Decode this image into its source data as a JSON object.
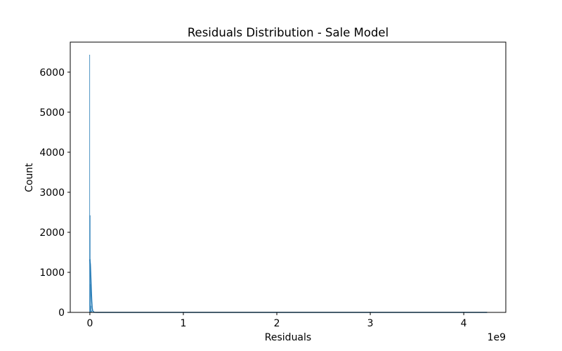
{
  "chart_data": {
    "type": "bar",
    "title": "Residuals Distribution - Sale Model",
    "xlabel": "Residuals",
    "ylabel": "Count",
    "x_offset_label": "1e9",
    "xlim": [
      -0.21,
      4.45
    ],
    "ylim": [
      0,
      6750
    ],
    "x_ticks": [
      {
        "value": 0,
        "label": "0"
      },
      {
        "value": 1,
        "label": "1"
      },
      {
        "value": 2,
        "label": "2"
      },
      {
        "value": 3,
        "label": "3"
      },
      {
        "value": 4,
        "label": "4"
      }
    ],
    "y_ticks": [
      {
        "value": 0,
        "label": "0"
      },
      {
        "value": 1000,
        "label": "1000"
      },
      {
        "value": 2000,
        "label": "2000"
      },
      {
        "value": 3000,
        "label": "3000"
      },
      {
        "value": 4000,
        "label": "4000"
      },
      {
        "value": 5000,
        "label": "5000"
      },
      {
        "value": 6000,
        "label": "6000"
      }
    ],
    "bins": [
      {
        "x0": -0.005,
        "x1": 0.0,
        "count": 6430
      },
      {
        "x0": 0.0,
        "x1": 0.005,
        "count": 2420
      },
      {
        "x0": 0.005,
        "x1": 0.01,
        "count": 700
      },
      {
        "x0": 0.01,
        "x1": 0.015,
        "count": 160
      },
      {
        "x0": 0.015,
        "x1": 0.02,
        "count": 40
      },
      {
        "x0": 0.02,
        "x1": 0.025,
        "count": 10
      }
    ],
    "kde": {
      "x": [
        -0.005,
        0.0,
        0.005,
        0.01,
        0.015,
        0.02,
        0.025,
        0.03,
        0.04,
        0.05,
        0.07,
        0.1,
        0.5,
        1.0,
        2.0,
        3.0,
        4.0,
        4.25
      ],
      "y": [
        1300,
        1310,
        1200,
        900,
        560,
        280,
        110,
        40,
        10,
        3,
        1,
        0.5,
        0,
        0,
        0,
        0,
        0,
        0
      ]
    },
    "colors": {
      "bar": "#1f77b4",
      "line": "#1f77b4",
      "axes": "#000000"
    },
    "grid": false
  }
}
